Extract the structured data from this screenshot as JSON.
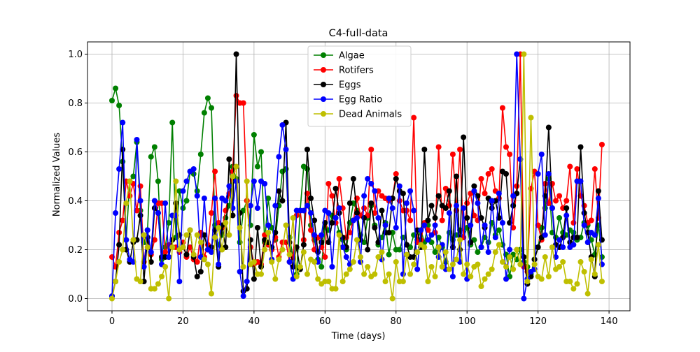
{
  "chart_data": {
    "type": "line",
    "title": "C4-full-data",
    "xlabel": "Time (days)",
    "ylabel": "Normalized Values",
    "xlim": [
      -6.9,
      145.9
    ],
    "ylim": [
      -0.05,
      1.05
    ],
    "xticks": [
      0,
      20,
      40,
      60,
      80,
      100,
      120,
      140
    ],
    "yticks": [
      0.0,
      0.2,
      0.4,
      0.6,
      0.8,
      1.0
    ],
    "xtick_labels": [
      "0",
      "20",
      "40",
      "60",
      "80",
      "100",
      "120",
      "140"
    ],
    "ytick_labels": [
      "0.0",
      "0.2",
      "0.4",
      "0.6",
      "0.8",
      "1.0"
    ],
    "grid": true,
    "legend_position": "upper center",
    "x": [
      0,
      1,
      2,
      3,
      4,
      5,
      6,
      7,
      8,
      9,
      10,
      11,
      12,
      13,
      14,
      15,
      16,
      17,
      18,
      19,
      20,
      21,
      22,
      23,
      24,
      25,
      26,
      27,
      28,
      29,
      30,
      31,
      32,
      33,
      34,
      35,
      36,
      37,
      38,
      39,
      40,
      41,
      42,
      43,
      44,
      45,
      46,
      47,
      48,
      49,
      50,
      51,
      52,
      53,
      54,
      55,
      56,
      57,
      58,
      59,
      60,
      61,
      62,
      63,
      64,
      65,
      66,
      67,
      68,
      69,
      70,
      71,
      72,
      73,
      74,
      75,
      76,
      77,
      78,
      79,
      80,
      81,
      82,
      83,
      84,
      85,
      86,
      87,
      88,
      89,
      90,
      91,
      92,
      93,
      94,
      95,
      96,
      97,
      98,
      99,
      100,
      101,
      102,
      103,
      104,
      105,
      106,
      107,
      108,
      109,
      110,
      111,
      112,
      113,
      114,
      115,
      116,
      117,
      118,
      119,
      120,
      121,
      122,
      123,
      124,
      125,
      126,
      127,
      128,
      129,
      130,
      131,
      132,
      133,
      134,
      135,
      136,
      137,
      138
    ],
    "series": [
      {
        "name": "Algae",
        "color": "#008000",
        "values": [
          0.81,
          0.86,
          0.79,
          0.56,
          0.24,
          0.48,
          0.5,
          0.64,
          0.36,
          0.23,
          0.28,
          0.58,
          0.62,
          0.48,
          0.16,
          0.21,
          0.31,
          0.72,
          0.25,
          0.44,
          0.37,
          0.4,
          0.52,
          0.51,
          0.44,
          0.59,
          0.76,
          0.82,
          0.78,
          0.3,
          0.22,
          0.26,
          0.33,
          0.38,
          0.54,
          0.49,
          0.23,
          0.36,
          0.4,
          0.3,
          0.67,
          0.54,
          0.6,
          0.23,
          0.41,
          0.29,
          0.24,
          0.38,
          0.52,
          0.53,
          0.25,
          0.17,
          0.1,
          0.36,
          0.54,
          0.53,
          0.3,
          0.24,
          0.16,
          0.13,
          0.29,
          0.28,
          0.34,
          0.33,
          0.27,
          0.24,
          0.2,
          0.31,
          0.39,
          0.36,
          0.26,
          0.23,
          0.33,
          0.38,
          0.3,
          0.22,
          0.25,
          0.31,
          0.18,
          0.27,
          0.2,
          0.2,
          0.25,
          0.22,
          0.21,
          0.26,
          0.24,
          0.28,
          0.23,
          0.3,
          0.23,
          0.19,
          0.25,
          0.21,
          0.15,
          0.27,
          0.24,
          0.26,
          0.28,
          0.25,
          0.29,
          0.22,
          0.24,
          0.19,
          0.21,
          0.25,
          0.23,
          0.31,
          0.26,
          0.28,
          0.22,
          0.18,
          0.09,
          0.18,
          0.16,
          0.2,
          0.15,
          0.13,
          0.1,
          0.16,
          0.21,
          0.29,
          0.37,
          0.49,
          0.27,
          0.25,
          0.33,
          0.27,
          0.26,
          0.28,
          0.27,
          0.24,
          0.25,
          0.31,
          0.3,
          0.24,
          0.18,
          0.3,
          0.17
        ]
      },
      {
        "name": "Rotifers",
        "color": "#ff0000",
        "values": [
          0.17,
          0.13,
          0.27,
          0.32,
          0.48,
          0.42,
          0.47,
          0.36,
          0.46,
          0.15,
          0.25,
          0.18,
          0.24,
          0.39,
          0.39,
          0.19,
          0.22,
          0.21,
          0.21,
          0.19,
          0.23,
          0.17,
          0.21,
          0.16,
          0.15,
          0.27,
          0.17,
          0.22,
          0.35,
          0.52,
          0.31,
          0.29,
          0.36,
          0.43,
          0.52,
          0.83,
          0.8,
          0.8,
          0.4,
          0.21,
          0.14,
          0.15,
          0.14,
          0.26,
          0.22,
          0.2,
          0.25,
          0.17,
          0.23,
          0.23,
          0.15,
          0.17,
          0.34,
          0.36,
          0.24,
          0.43,
          0.28,
          0.2,
          0.25,
          0.21,
          0.17,
          0.47,
          0.42,
          0.31,
          0.49,
          0.37,
          0.25,
          0.27,
          0.32,
          0.41,
          0.34,
          0.37,
          0.34,
          0.61,
          0.35,
          0.44,
          0.42,
          0.41,
          0.4,
          0.41,
          0.51,
          0.4,
          0.36,
          0.36,
          0.32,
          0.74,
          0.23,
          0.24,
          0.31,
          0.28,
          0.26,
          0.27,
          0.62,
          0.32,
          0.45,
          0.38,
          0.59,
          0.36,
          0.61,
          0.25,
          0.39,
          0.43,
          0.34,
          0.32,
          0.49,
          0.43,
          0.51,
          0.53,
          0.44,
          0.41,
          0.78,
          0.62,
          0.59,
          0.29,
          0.46,
          1.0,
          0.13,
          0.11,
          0.45,
          0.52,
          0.3,
          0.24,
          0.47,
          0.39,
          0.47,
          0.4,
          0.42,
          0.37,
          0.4,
          0.54,
          0.31,
          0.53,
          0.42,
          0.38,
          0.31,
          0.32,
          0.53,
          0.33,
          0.63
        ]
      },
      {
        "name": "Eggs",
        "color": "#000000",
        "values": [
          0.01,
          0.07,
          0.22,
          0.61,
          0.2,
          0.15,
          0.23,
          0.24,
          0.34,
          0.07,
          0.25,
          0.15,
          0.37,
          0.35,
          0.17,
          0.17,
          0.17,
          0.24,
          0.39,
          0.26,
          0.21,
          0.18,
          0.28,
          0.17,
          0.09,
          0.11,
          0.26,
          0.2,
          0.21,
          0.28,
          0.13,
          0.3,
          0.21,
          0.57,
          0.34,
          1.0,
          0.35,
          0.03,
          0.04,
          0.24,
          0.08,
          0.29,
          0.13,
          0.24,
          0.23,
          0.21,
          0.27,
          0.44,
          0.4,
          0.72,
          0.23,
          0.13,
          0.21,
          0.12,
          0.22,
          0.61,
          0.41,
          0.32,
          0.19,
          0.23,
          0.31,
          0.23,
          0.31,
          0.45,
          0.35,
          0.25,
          0.21,
          0.39,
          0.49,
          0.35,
          0.24,
          0.33,
          0.2,
          0.39,
          0.29,
          0.23,
          0.36,
          0.27,
          0.27,
          0.41,
          0.49,
          0.44,
          0.43,
          0.22,
          0.17,
          0.17,
          0.28,
          0.21,
          0.61,
          0.32,
          0.38,
          0.33,
          0.42,
          0.38,
          0.37,
          0.44,
          0.21,
          0.5,
          0.2,
          0.66,
          0.33,
          0.23,
          0.46,
          0.42,
          0.33,
          0.29,
          0.41,
          0.37,
          0.4,
          0.33,
          0.52,
          0.51,
          0.31,
          0.38,
          0.43,
          0.57,
          0.17,
          0.06,
          0.09,
          0.16,
          0.21,
          0.25,
          0.42,
          0.7,
          0.37,
          0.22,
          0.21,
          0.25,
          0.37,
          0.23,
          0.25,
          0.25,
          0.62,
          0.35,
          0.27,
          0.17,
          0.09,
          0.44,
          0.24
        ]
      },
      {
        "name": "Egg Ratio",
        "color": "#0000ff",
        "values": [
          0.01,
          0.35,
          0.53,
          0.72,
          0.24,
          0.16,
          0.15,
          0.65,
          0.4,
          0.13,
          0.28,
          0.19,
          0.4,
          0.35,
          0.14,
          0.39,
          0.17,
          0.34,
          0.34,
          0.07,
          0.44,
          0.48,
          0.52,
          0.53,
          0.42,
          0.17,
          0.41,
          0.2,
          0.19,
          0.41,
          0.14,
          0.41,
          0.4,
          0.46,
          0.37,
          0.48,
          0.11,
          0.01,
          0.07,
          0.38,
          0.48,
          0.37,
          0.48,
          0.47,
          0.3,
          0.16,
          0.38,
          0.58,
          0.71,
          0.61,
          0.15,
          0.08,
          0.36,
          0.36,
          0.36,
          0.38,
          0.35,
          0.26,
          0.15,
          0.26,
          0.36,
          0.35,
          0.13,
          0.33,
          0.37,
          0.21,
          0.17,
          0.14,
          0.32,
          0.33,
          0.15,
          0.42,
          0.49,
          0.47,
          0.44,
          0.33,
          0.16,
          0.3,
          0.41,
          0.37,
          0.29,
          0.46,
          0.1,
          0.39,
          0.44,
          0.36,
          0.12,
          0.28,
          0.3,
          0.24,
          0.26,
          0.3,
          0.17,
          0.22,
          0.12,
          0.35,
          0.09,
          0.38,
          0.15,
          0.37,
          0.08,
          0.3,
          0.44,
          0.39,
          0.21,
          0.3,
          0.19,
          0.4,
          0.25,
          0.43,
          0.31,
          0.08,
          0.2,
          0.42,
          1.0,
          0.57,
          0.0,
          0.08,
          0.11,
          0.12,
          0.51,
          0.59,
          0.26,
          0.51,
          0.37,
          0.17,
          0.24,
          0.21,
          0.34,
          0.21,
          0.22,
          0.48,
          0.48,
          0.3,
          0.23,
          0.27,
          0.26,
          0.41,
          0.14
        ]
      },
      {
        "name": "Dead Animals",
        "color": "#bfbf00",
        "values": [
          0.0,
          0.07,
          0.15,
          0.2,
          0.39,
          0.48,
          0.24,
          0.08,
          0.07,
          0.26,
          0.21,
          0.04,
          0.04,
          0.06,
          0.09,
          0.13,
          0.0,
          0.21,
          0.48,
          0.2,
          0.21,
          0.26,
          0.28,
          0.18,
          0.26,
          0.23,
          0.16,
          0.14,
          0.02,
          0.25,
          0.29,
          0.2,
          0.31,
          0.26,
          0.5,
          0.54,
          0.29,
          0.13,
          0.48,
          0.14,
          0.15,
          0.1,
          0.1,
          0.2,
          0.27,
          0.15,
          0.08,
          0.16,
          0.2,
          0.3,
          0.18,
          0.33,
          0.09,
          0.13,
          0.19,
          0.1,
          0.16,
          0.15,
          0.08,
          0.06,
          0.07,
          0.07,
          0.04,
          0.04,
          0.26,
          0.07,
          0.1,
          0.12,
          0.15,
          0.24,
          0.17,
          0.1,
          0.13,
          0.09,
          0.1,
          0.17,
          0.19,
          0.07,
          0.1,
          0.0,
          0.15,
          0.07,
          0.07,
          0.18,
          0.1,
          0.14,
          0.19,
          0.22,
          0.21,
          0.07,
          0.13,
          0.09,
          0.21,
          0.13,
          0.19,
          0.12,
          0.14,
          0.16,
          0.24,
          0.1,
          0.14,
          0.09,
          0.13,
          0.14,
          0.05,
          0.08,
          0.1,
          0.12,
          0.19,
          0.22,
          0.15,
          0.13,
          0.17,
          0.12,
          0.2,
          0.14,
          1.0,
          0.07,
          0.74,
          0.14,
          0.09,
          0.08,
          0.17,
          0.09,
          0.21,
          0.12,
          0.13,
          0.15,
          0.07,
          0.07,
          0.04,
          0.06,
          0.15,
          0.11,
          0.02,
          0.16,
          0.1,
          0.22,
          0.07
        ]
      }
    ]
  }
}
